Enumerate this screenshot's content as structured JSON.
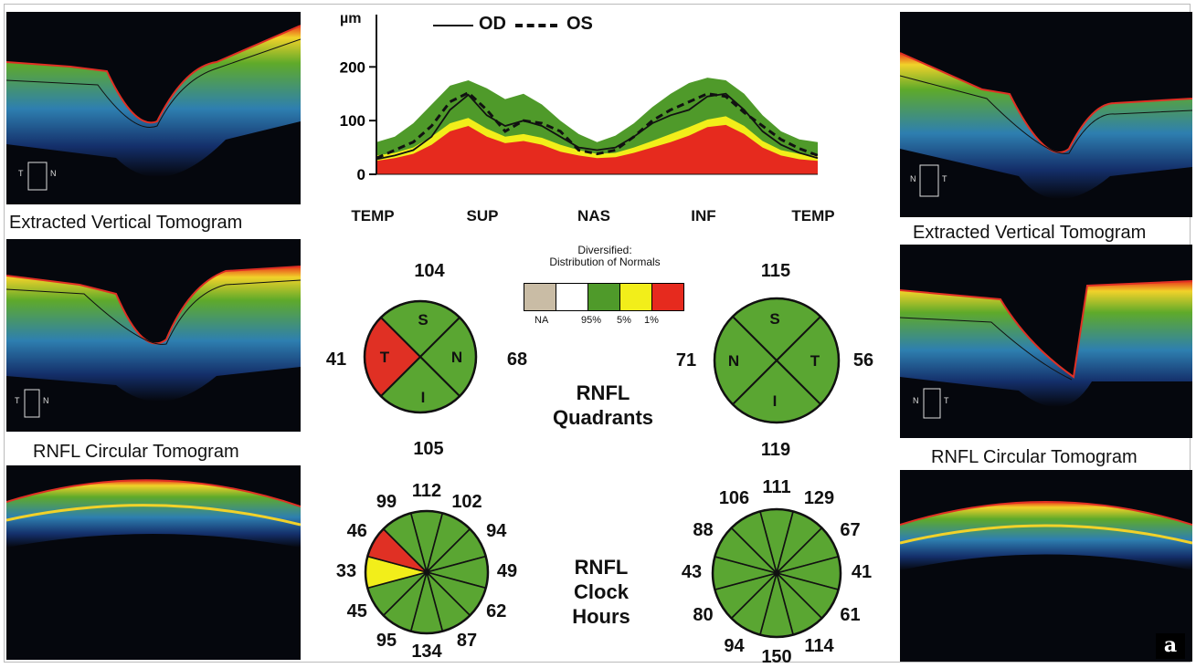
{
  "captions": {
    "left_vertical": "Extracted Vertical Tomogram",
    "left_circular": "RNFL Circular Tomogram",
    "right_vertical": "Extracted Vertical Tomogram",
    "right_circular": "RNFL Circular Tomogram"
  },
  "scan_markers": {
    "left_top": {
      "a": "T",
      "b": "N"
    },
    "left_mid": {
      "a": "T",
      "b": "N"
    },
    "right_top": {
      "a": "N",
      "b": "T"
    },
    "right_mid": {
      "a": "N",
      "b": "T"
    }
  },
  "chart_data": {
    "type": "line",
    "ylabel": "µm",
    "yticks": [
      "0",
      "100",
      "200"
    ],
    "ylim": [
      0,
      260
    ],
    "xticks": [
      "TEMP",
      "SUP",
      "NAS",
      "INF",
      "TEMP"
    ],
    "legend": {
      "od": "OD",
      "os": "OS"
    },
    "x": [
      0,
      1,
      2,
      3,
      4,
      5,
      6,
      7,
      8,
      9,
      10,
      11,
      12,
      13,
      14,
      15,
      16,
      17,
      18,
      19,
      20,
      21,
      22,
      23,
      24
    ],
    "bands": {
      "red_top": [
        25,
        30,
        38,
        55,
        80,
        90,
        70,
        58,
        62,
        55,
        42,
        35,
        30,
        32,
        40,
        50,
        60,
        72,
        88,
        92,
        75,
        50,
        35,
        28,
        25
      ],
      "yellow_top": [
        35,
        40,
        50,
        70,
        95,
        105,
        85,
        70,
        75,
        68,
        55,
        45,
        38,
        40,
        50,
        62,
        75,
        88,
        102,
        108,
        90,
        62,
        45,
        38,
        34
      ],
      "green_top": [
        60,
        70,
        95,
        130,
        165,
        175,
        160,
        140,
        150,
        130,
        100,
        75,
        60,
        72,
        95,
        125,
        150,
        170,
        180,
        175,
        150,
        110,
        80,
        65,
        60
      ]
    },
    "series": [
      {
        "name": "OD",
        "style": "solid",
        "values": [
          28,
          35,
          45,
          70,
          120,
          148,
          110,
          90,
          100,
          90,
          70,
          50,
          45,
          50,
          70,
          95,
          110,
          120,
          145,
          150,
          120,
          80,
          55,
          40,
          30
        ]
      },
      {
        "name": "OS",
        "style": "dashed",
        "values": [
          30,
          45,
          60,
          90,
          135,
          152,
          120,
          80,
          100,
          95,
          80,
          45,
          38,
          45,
          70,
          100,
          120,
          135,
          150,
          145,
          115,
          90,
          65,
          48,
          35
        ]
      }
    ]
  },
  "legend": {
    "title_line1": "Diversified:",
    "title_line2": "Distribution of Normals",
    "colors": [
      "#c9bca5",
      "#ffffff",
      "#4f9a2a",
      "#f2ee1a",
      "#e62a1e"
    ],
    "labels": [
      "NA",
      "95%",
      "5%",
      "1%"
    ]
  },
  "quadrants": {
    "label_line1": "RNFL",
    "label_line2": "Quadrants",
    "od": {
      "values": {
        "top": "104",
        "left": "41",
        "right": "68",
        "bottom": "105"
      },
      "letters": {
        "s": "S",
        "t": "T",
        "n": "N",
        "i": "I"
      },
      "colors": {
        "top": "#5aa632",
        "left": "#e03024",
        "right": "#5aa632",
        "bottom": "#5aa632"
      }
    },
    "os": {
      "values": {
        "top": "115",
        "left": "71",
        "right": "56",
        "bottom": "119"
      },
      "letters": {
        "s": "S",
        "n": "N",
        "t": "T",
        "i": "I"
      },
      "colors": {
        "top": "#5aa632",
        "left": "#5aa632",
        "right": "#5aa632",
        "bottom": "#5aa632"
      }
    }
  },
  "clock_hours": {
    "label_line1": "RNFL",
    "label_line2": "Clock",
    "label_line3": "Hours",
    "od": {
      "labels": [
        "112",
        "102",
        "94",
        "49",
        "62",
        "87",
        "134",
        "95",
        "45",
        "33",
        "46",
        "99"
      ],
      "colors": [
        "#5aa632",
        "#5aa632",
        "#5aa632",
        "#5aa632",
        "#5aa632",
        "#5aa632",
        "#5aa632",
        "#5aa632",
        "#5aa632",
        "#f2ee1a",
        "#e03024",
        "#5aa632"
      ]
    },
    "os": {
      "labels": [
        "111",
        "129",
        "67",
        "41",
        "61",
        "114",
        "150",
        "94",
        "80",
        "43",
        "88",
        "106"
      ],
      "colors": [
        "#5aa632",
        "#5aa632",
        "#5aa632",
        "#5aa632",
        "#5aa632",
        "#5aa632",
        "#5aa632",
        "#5aa632",
        "#5aa632",
        "#5aa632",
        "#5aa632",
        "#5aa632"
      ]
    }
  },
  "panel_mark": "a"
}
